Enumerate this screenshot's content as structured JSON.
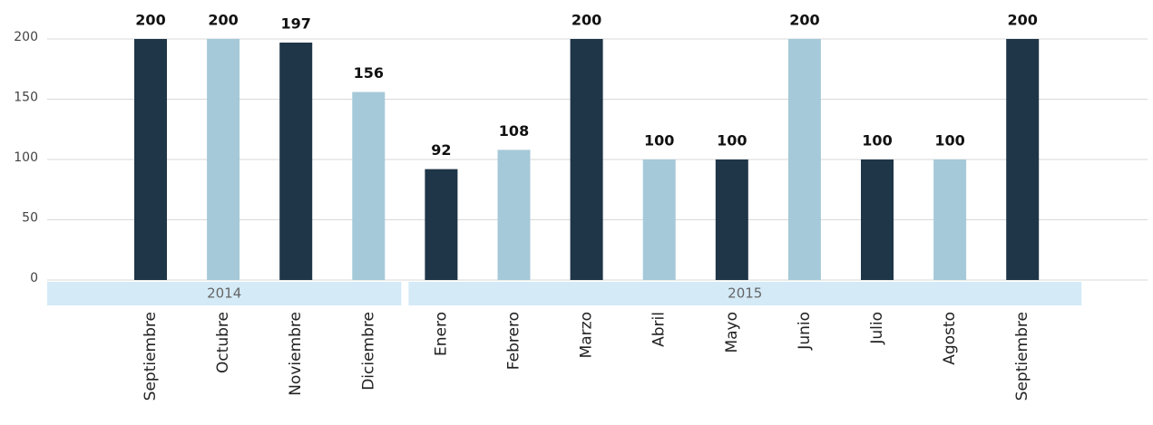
{
  "chart_data": {
    "type": "bar",
    "categories": [
      "Septiembre",
      "Octubre",
      "Noviembre",
      "Diciembre",
      "Enero",
      "Febrero",
      "Marzo",
      "Abril",
      "Mayo",
      "Junio",
      "Julio",
      "Agosto",
      "Septiembre"
    ],
    "category_groups": [
      "2014",
      "2014",
      "2014",
      "2014",
      "2015",
      "2015",
      "2015",
      "2015",
      "2015",
      "2015",
      "2015",
      "2015",
      "2015"
    ],
    "values": [
      200,
      200,
      197,
      156,
      92,
      108,
      200,
      100,
      100,
      200,
      100,
      100,
      200
    ],
    "colors": [
      "#1f3548",
      "#a5c9d8",
      "#1f3548",
      "#a5c9d8",
      "#1f3548",
      "#a5c9d8",
      "#1f3548",
      "#a5c9d8",
      "#1f3548",
      "#a5c9d8",
      "#1f3548",
      "#a5c9d8",
      "#1f3548"
    ],
    "group_color": "#d4eaf7",
    "ylim": [
      0,
      200
    ],
    "yticks": [
      0,
      50,
      100,
      150,
      200
    ],
    "grid": true
  }
}
